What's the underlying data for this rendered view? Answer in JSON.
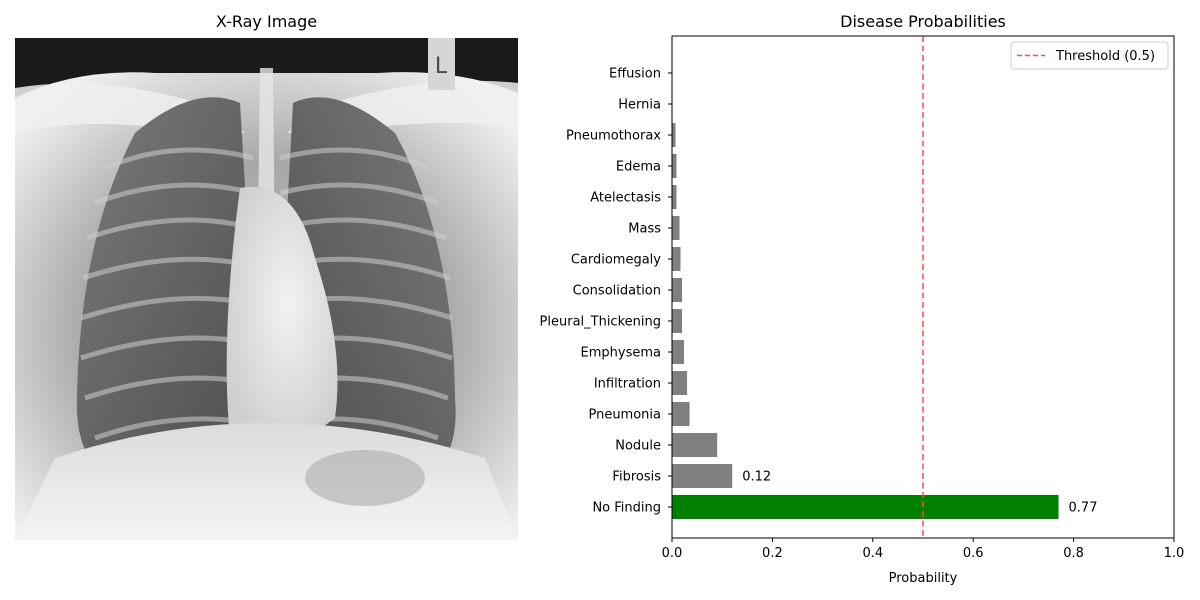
{
  "xray_panel": {
    "title": "X-Ray Image",
    "marker_text": "L"
  },
  "chart_data": {
    "type": "bar",
    "orientation": "horizontal",
    "title": "Disease Probabilities",
    "xlabel": "Probability",
    "ylabel": "",
    "xlim": [
      0,
      1.0
    ],
    "xticks": [
      "0.0",
      "0.2",
      "0.4",
      "0.6",
      "0.8",
      "1.0"
    ],
    "xtick_values": [
      0,
      0.2,
      0.4,
      0.6,
      0.8,
      1.0
    ],
    "categories": [
      "No Finding",
      "Fibrosis",
      "Nodule",
      "Pneumonia",
      "Infiltration",
      "Emphysema",
      "Pleural_Thickening",
      "Consolidation",
      "Cardiomegaly",
      "Mass",
      "Atelectasis",
      "Edema",
      "Pneumothorax",
      "Hernia",
      "Effusion"
    ],
    "values": [
      0.77,
      0.12,
      0.09,
      0.035,
      0.03,
      0.024,
      0.02,
      0.02,
      0.017,
      0.015,
      0.009,
      0.009,
      0.007,
      0.001,
      0.001
    ],
    "bar_colors": [
      "#008000",
      "#808080",
      "#808080",
      "#808080",
      "#808080",
      "#808080",
      "#808080",
      "#808080",
      "#808080",
      "#808080",
      "#808080",
      "#808080",
      "#808080",
      "#808080",
      "#808080"
    ],
    "data_labels": [
      {
        "index": 0,
        "text": "0.77"
      },
      {
        "index": 1,
        "text": "0.12"
      }
    ],
    "threshold": {
      "value": 0.5,
      "label": "Threshold (0.5)",
      "color": "#ff4c4c",
      "style": "dashed"
    },
    "legend_placement": "top-right",
    "grid": false
  }
}
